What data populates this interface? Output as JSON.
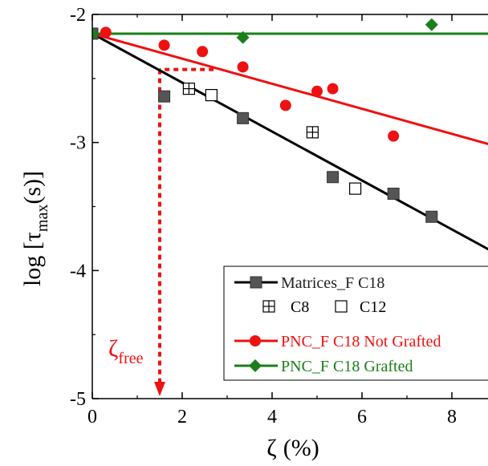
{
  "chart_data": {
    "type": "scatter",
    "xlabel_symbol": "ζ",
    "xlabel_unit": "(%)",
    "ylabel_prefix": "log [",
    "ylabel_tau": "τ",
    "ylabel_sub": "max",
    "ylabel_suffix": "(s)]",
    "xlim": [
      0,
      9
    ],
    "ylim": [
      -5,
      -2
    ],
    "xticks": [
      0,
      2,
      4,
      6,
      8
    ],
    "yticks": [
      -5,
      -4,
      -3,
      -2
    ],
    "xtick_labels": [
      "0",
      "2",
      "4",
      "6",
      "8"
    ],
    "ytick_labels": [
      "-5",
      "-4",
      "-3",
      "-2"
    ],
    "grid": false,
    "legend_placement": "bottom-right",
    "series": [
      {
        "name": "Matrices_F C18",
        "marker": "square-filled",
        "color": "#555555",
        "x": [
          0,
          1.6,
          3.35,
          5.35,
          6.7,
          7.55
        ],
        "y": [
          -2.15,
          -2.64,
          -2.81,
          -3.27,
          -3.4,
          -3.58
        ],
        "fit": {
          "color": "#000000",
          "x": [
            0,
            9
          ],
          "y": [
            -2.15,
            -3.87
          ]
        }
      },
      {
        "name": "C8",
        "marker": "square-crossed",
        "color": "#000000",
        "x": [
          2.15,
          4.9
        ],
        "y": [
          -2.58,
          -2.92
        ]
      },
      {
        "name": "C12",
        "marker": "square-open",
        "color": "#000000",
        "x": [
          2.65,
          5.85
        ],
        "y": [
          -2.63,
          -3.36
        ]
      },
      {
        "name": "PNC_F C18 Not Grafted",
        "marker": "circle",
        "color": "#ee1111",
        "x": [
          0.3,
          1.6,
          2.45,
          3.35,
          4.3,
          5.0,
          5.35,
          6.7
        ],
        "y": [
          -2.14,
          -2.24,
          -2.29,
          -2.41,
          -2.71,
          -2.6,
          -2.58,
          -2.95
        ],
        "fit": {
          "color": "#ee1111",
          "x": [
            0,
            9
          ],
          "y": [
            -2.15,
            -3.03
          ]
        }
      },
      {
        "name": "PNC_F C18 Grafted",
        "marker": "diamond",
        "color": "#1a7f1a",
        "x": [
          0,
          3.35,
          7.55
        ],
        "y": [
          -2.15,
          -2.18,
          -2.08
        ],
        "fit": {
          "color": "#1a7f1a",
          "x": [
            0,
            9
          ],
          "y": [
            -2.15,
            -2.15
          ]
        }
      }
    ],
    "annotation": {
      "symbol": "ζ",
      "subscript": "free",
      "color": "#ee1111",
      "x": 1.5,
      "y_level": -2.43
    },
    "legend_labels": {
      "matrices": "Matrices_F C18",
      "c8": "C8",
      "c12": "C12",
      "not_grafted": "PNC_F C18 Not Grafted",
      "grafted": "PNC_F C18 Grafted"
    }
  }
}
